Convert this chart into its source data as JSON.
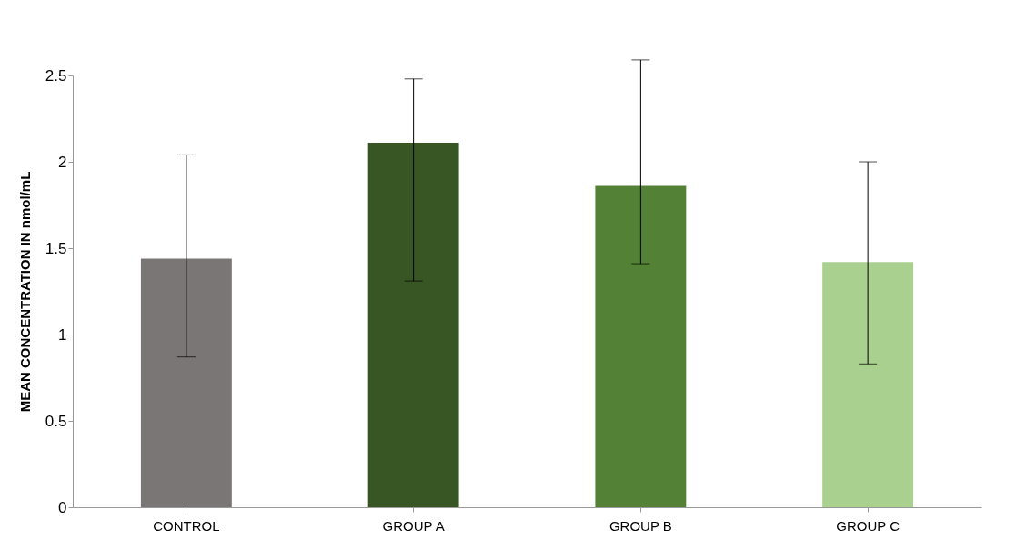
{
  "chart_data": {
    "type": "bar",
    "ylabel": "MEAN CONCENTRATION IN nmol/mL",
    "categories": [
      "CONTROL",
      "GROUP A",
      "GROUP B",
      "GROUP C"
    ],
    "values": [
      1.44,
      2.11,
      1.86,
      1.42
    ],
    "colors": [
      "#7a7675",
      "#375623",
      "#538135",
      "#a9d08e"
    ],
    "errors": [
      [
        0.87,
        2.04
      ],
      [
        1.31,
        2.48
      ],
      [
        1.41,
        2.59
      ],
      [
        0.83,
        2.0
      ]
    ],
    "ylim": [
      0,
      2.5
    ],
    "yticks": [
      0,
      0.5,
      1,
      1.5,
      2,
      2.5
    ],
    "grid": false,
    "legend": false
  }
}
